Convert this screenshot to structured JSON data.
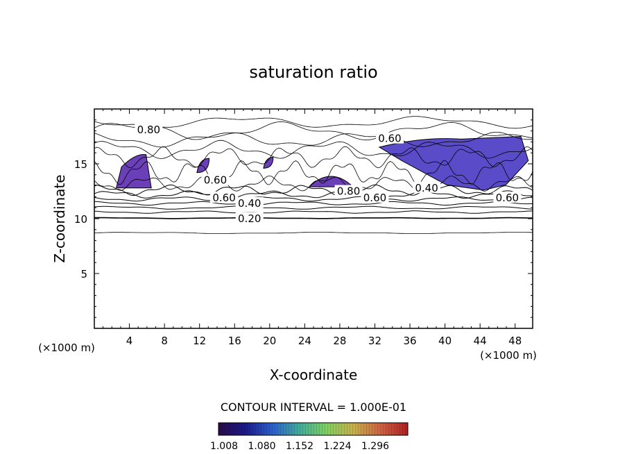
{
  "chart_data": {
    "type": "contour",
    "title": "saturation ratio",
    "xlabel": "X-coordinate",
    "ylabel": "Z-coordinate",
    "x_unit": "(×1000 m)",
    "z_unit": "(×1000 m)",
    "xlim": [
      0,
      50
    ],
    "ylim": [
      0,
      20
    ],
    "x_ticks": [
      4,
      8,
      12,
      16,
      20,
      24,
      28,
      32,
      36,
      40,
      44,
      48
    ],
    "y_ticks": [
      5,
      10,
      15
    ],
    "contour_interval_label": "CONTOUR INTERVAL = 1.000E-01",
    "colorbar_ticks": [
      "1.008",
      "1.080",
      "1.152",
      "1.224",
      "1.296"
    ],
    "colorbar_colors": [
      "#2a0a4a",
      "#1a1a8c",
      "#2a5fd0",
      "#3fae9a",
      "#7fd060",
      "#c8b048",
      "#d06040",
      "#b02020"
    ],
    "contour_labels": [
      {
        "text": "0.80",
        "x": 6.2,
        "z": 18.1
      },
      {
        "text": "0.60",
        "x": 33.7,
        "z": 17.3
      },
      {
        "text": "0.60",
        "x": 13.8,
        "z": 13.5
      },
      {
        "text": "0.60",
        "x": 14.8,
        "z": 11.9
      },
      {
        "text": "0.40",
        "x": 17.7,
        "z": 11.4
      },
      {
        "text": "0.20",
        "x": 17.7,
        "z": 10.0
      },
      {
        "text": "0.80",
        "x": 29.0,
        "z": 12.5
      },
      {
        "text": "0.60",
        "x": 32.0,
        "z": 11.9
      },
      {
        "text": "0.40",
        "x": 37.9,
        "z": 12.8
      },
      {
        "text": "0.60",
        "x": 47.1,
        "z": 11.9
      }
    ],
    "supersaturated_regions": [
      {
        "x_range": [
          2.5,
          6.5
        ],
        "z_range": [
          12.8,
          16.0
        ]
      },
      {
        "x_range": [
          24.5,
          29.5
        ],
        "z_range": [
          12.9,
          14.5
        ]
      },
      {
        "x_range": [
          32.5,
          49.5
        ],
        "z_range": [
          12.6,
          17.5
        ]
      },
      {
        "x_range": [
          11.7,
          13.1
        ],
        "z_range": [
          14.2,
          15.5
        ]
      },
      {
        "x_range": [
          19.3,
          20.4
        ],
        "z_range": [
          14.6,
          15.6
        ]
      }
    ]
  }
}
